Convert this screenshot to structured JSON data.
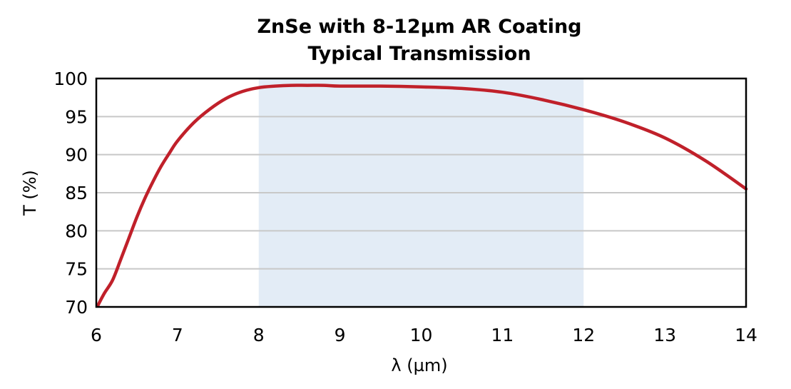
{
  "chart_data": {
    "type": "line",
    "title": "ZnSe with 8-12µm AR Coating",
    "subtitle": "Typical Transmission",
    "xlabel": "λ (µm)",
    "ylabel": "T (%)",
    "xlim": [
      6,
      14
    ],
    "ylim": [
      70,
      100
    ],
    "x_ticks": [
      "6",
      "7",
      "8",
      "9",
      "10",
      "11",
      "12",
      "13",
      "14"
    ],
    "y_ticks": [
      "70",
      "75",
      "80",
      "85",
      "90",
      "95",
      "100"
    ],
    "grid": true,
    "highlight_band": {
      "from": 8,
      "to": 12,
      "color": "#e3ecf6"
    },
    "series": [
      {
        "color": "#c0202a",
        "x": [
          6.02,
          6.1,
          6.2,
          6.3,
          6.4,
          6.5,
          6.6,
          6.7,
          6.8,
          6.9,
          7.0,
          7.2,
          7.4,
          7.6,
          7.8,
          8.0,
          8.2,
          8.4,
          8.6,
          8.8,
          9.0,
          9.5,
          10.0,
          10.5,
          11.0,
          11.5,
          12.0,
          12.5,
          13.0,
          13.5,
          14.0
        ],
        "y": [
          70.2,
          71.8,
          73.5,
          76.2,
          79.0,
          81.8,
          84.3,
          86.5,
          88.5,
          90.2,
          91.8,
          94.2,
          96.0,
          97.4,
          98.3,
          98.8,
          99.0,
          99.1,
          99.1,
          99.1,
          99.0,
          99.0,
          98.9,
          98.7,
          98.2,
          97.2,
          95.9,
          94.3,
          92.2,
          89.2,
          85.5
        ]
      }
    ]
  }
}
